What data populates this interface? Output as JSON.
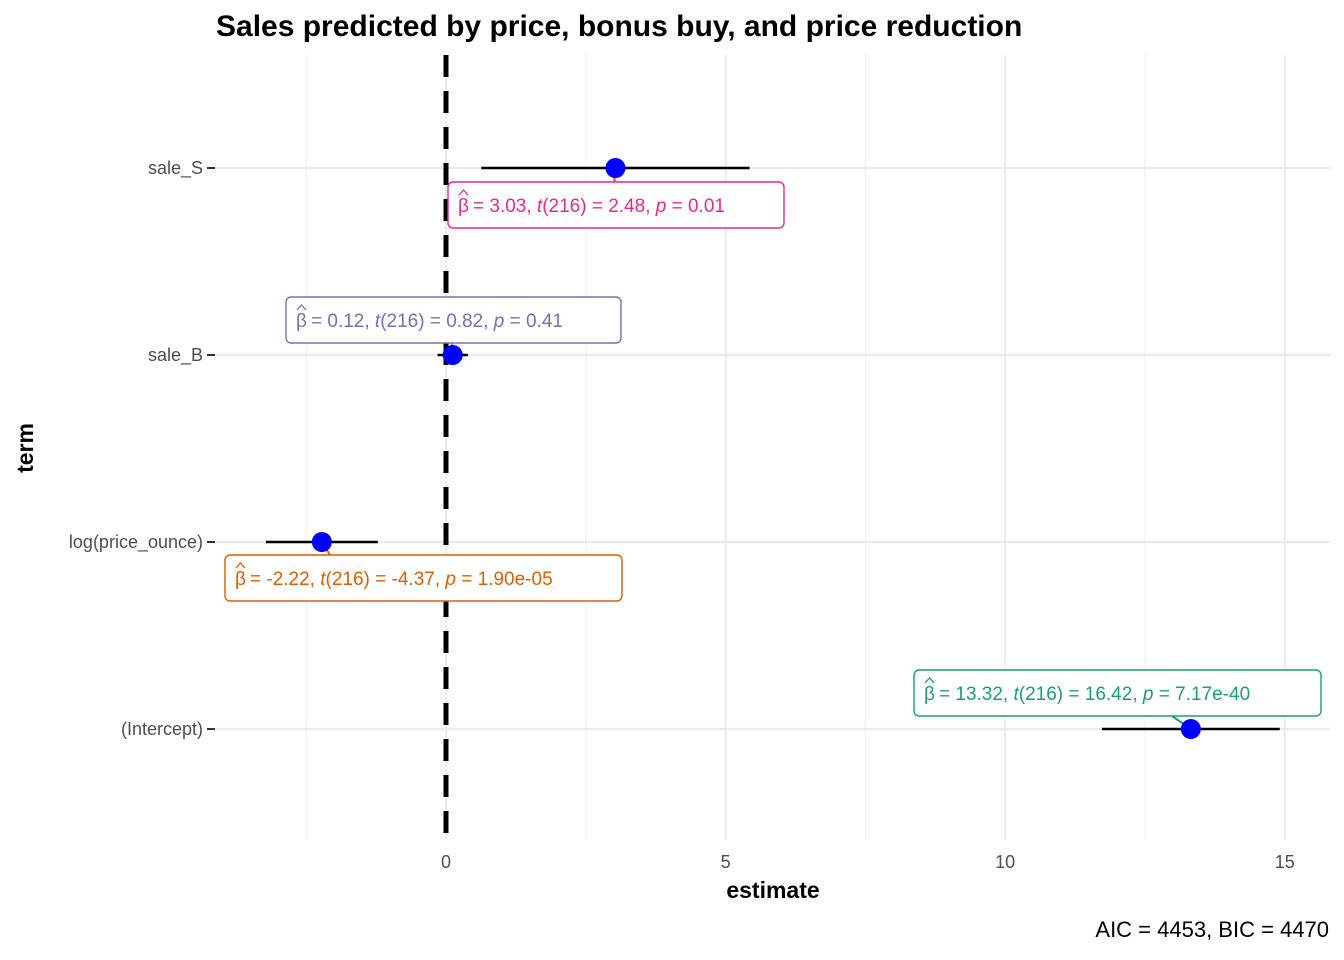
{
  "chart_data": {
    "type": "scatter",
    "subtype": "coefficient-plot",
    "title": "Sales predicted by price, bonus buy, and price reduction",
    "xlabel": "estimate",
    "ylabel": "term",
    "xlim": [
      -4,
      15.8
    ],
    "x_ticks": [
      0,
      5,
      10,
      15
    ],
    "grid": true,
    "reference_line_x": 0,
    "caption": "AIC = 4453, BIC = 4470",
    "point_color": "#0000ff",
    "terms": [
      {
        "term": "sale_S",
        "estimate": 3.03,
        "conf_low": 0.63,
        "conf_high": 5.43,
        "label_parts": [
          "= 3.03, ",
          "t",
          "(216) = 2.48, ",
          "p",
          " = 0.01"
        ],
        "label_color": "#e7298a"
      },
      {
        "term": "sale_B",
        "estimate": 0.12,
        "conf_low": -0.15,
        "conf_high": 0.39,
        "label_parts": [
          "= 0.12, ",
          "t",
          "(216) = 0.82, ",
          "p",
          " = 0.41"
        ],
        "label_color": "#7570b3"
      },
      {
        "term": "log(price_ounce)",
        "estimate": -2.22,
        "conf_low": -3.22,
        "conf_high": -1.22,
        "label_parts": [
          "= -2.22, ",
          "t",
          "(216) = -4.37, ",
          "p",
          " = 1.90e-05"
        ],
        "label_color": "#d95f02"
      },
      {
        "term": "(Intercept)",
        "estimate": 13.32,
        "conf_low": 11.73,
        "conf_high": 14.91,
        "label_parts": [
          "= 13.32, ",
          "t",
          "(216) = 16.42, ",
          "p",
          " = 7.17e-40"
        ],
        "label_color": "#1b9e77"
      }
    ]
  }
}
